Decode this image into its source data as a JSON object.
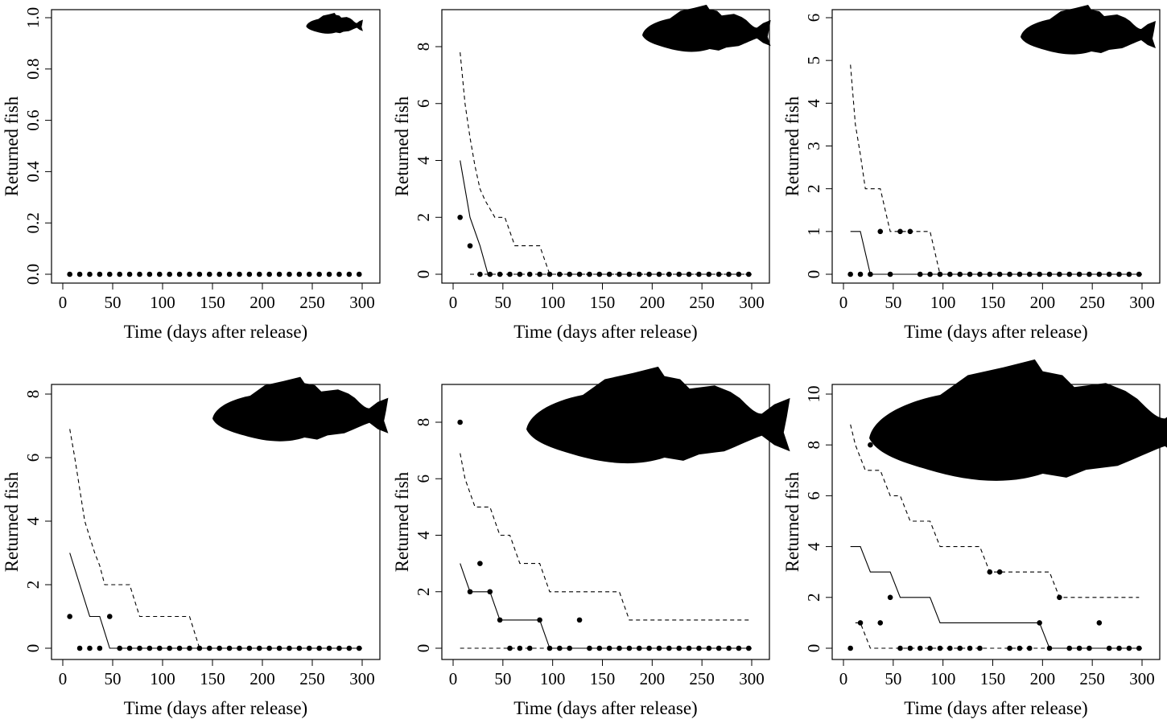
{
  "figure": {
    "xlabel": "Time (days after release)",
    "ylabel": "Returned fish"
  },
  "chart_data": [
    {
      "type": "scatter",
      "panel": "top-left",
      "xlabel": "Time (days after release)",
      "ylabel": "Returned fish",
      "xlim": [
        0,
        310
      ],
      "ylim": [
        0,
        1.0
      ],
      "xticks": [
        "0",
        "50",
        "100",
        "150",
        "200",
        "250",
        "300"
      ],
      "yticks": [
        "0.0",
        "0.2",
        "0.4",
        "0.6",
        "0.8",
        "1.0"
      ],
      "icon": "fish-silhouette-icon",
      "observed": {
        "x": [
          7,
          17,
          27,
          37,
          47,
          57,
          67,
          77,
          87,
          97,
          107,
          117,
          127,
          137,
          147,
          157,
          167,
          177,
          187,
          197,
          207,
          217,
          227,
          237,
          247,
          257,
          267,
          277,
          287,
          297
        ],
        "y": [
          0,
          0,
          0,
          0,
          0,
          0,
          0,
          0,
          0,
          0,
          0,
          0,
          0,
          0,
          0,
          0,
          0,
          0,
          0,
          0,
          0,
          0,
          0,
          0,
          0,
          0,
          0,
          0,
          0,
          0
        ]
      },
      "lower_band": {
        "x": [],
        "y": []
      },
      "upper_band": {
        "x": [],
        "y": []
      }
    },
    {
      "type": "scatter",
      "panel": "top-middle",
      "xlabel": "Time (days after release)",
      "ylabel": "Returned fish",
      "xlim": [
        0,
        310
      ],
      "ylim": [
        0,
        9
      ],
      "xticks": [
        "0",
        "50",
        "100",
        "150",
        "200",
        "250",
        "300"
      ],
      "yticks": [
        "0",
        "2",
        "4",
        "6",
        "8"
      ],
      "icon": "fish-silhouette-icon",
      "observed": {
        "x": [
          7,
          17,
          27,
          37,
          47,
          57,
          67,
          77,
          87,
          97,
          107,
          117,
          127,
          137,
          147,
          157,
          167,
          177,
          187,
          197,
          207,
          217,
          227,
          237,
          247,
          257,
          267,
          277,
          287,
          297
        ],
        "y": [
          2,
          1,
          0,
          0,
          0,
          0,
          0,
          0,
          0,
          0,
          0,
          0,
          0,
          0,
          0,
          0,
          0,
          0,
          0,
          0,
          0,
          0,
          0,
          0,
          0,
          0,
          0,
          0,
          0,
          0
        ]
      },
      "lower_band": {
        "x": [
          17,
          27
        ],
        "y": [
          0,
          0
        ]
      },
      "lower_band_label": "solid",
      "solid_line": {
        "x": [
          7,
          17,
          27,
          35
        ],
        "y": [
          4,
          2,
          1,
          0
        ]
      },
      "upper_band": {
        "x": [
          7,
          12,
          17,
          22,
          27,
          32,
          37,
          42,
          47,
          52,
          57,
          62,
          67,
          72,
          77,
          82,
          87,
          92,
          97,
          300
        ],
        "y": [
          7.8,
          6,
          4.8,
          3.8,
          3,
          2.6,
          2.3,
          2,
          2,
          2,
          1.5,
          1,
          1,
          1,
          1,
          1,
          1,
          0.5,
          0,
          0
        ]
      }
    },
    {
      "type": "scatter",
      "panel": "top-right",
      "xlabel": "Time (days after release)",
      "ylabel": "Returned fish",
      "xlim": [
        0,
        310
      ],
      "ylim": [
        0,
        6
      ],
      "xticks": [
        "0",
        "50",
        "100",
        "150",
        "200",
        "250",
        "300"
      ],
      "yticks": [
        "0",
        "1",
        "2",
        "3",
        "4",
        "5",
        "6"
      ],
      "icon": "fish-silhouette-icon",
      "observed": {
        "x": [
          7,
          17,
          27,
          37,
          47,
          57,
          67,
          77,
          87,
          97,
          107,
          117,
          127,
          137,
          147,
          157,
          167,
          177,
          187,
          197,
          207,
          217,
          227,
          237,
          247,
          257,
          267,
          277,
          287,
          297
        ],
        "y": [
          0,
          0,
          0,
          1,
          0,
          1,
          1,
          0,
          0,
          0,
          0,
          0,
          0,
          0,
          0,
          0,
          0,
          0,
          0,
          0,
          0,
          0,
          0,
          0,
          0,
          0,
          0,
          0,
          0,
          0
        ]
      },
      "solid_line": {
        "x": [
          7,
          17,
          22,
          27,
          300
        ],
        "y": [
          1,
          1,
          0.5,
          0,
          0
        ]
      },
      "upper_band": {
        "x": [
          7,
          12,
          17,
          22,
          27,
          37,
          42,
          47,
          57,
          67,
          77,
          87,
          97
        ],
        "y": [
          4.9,
          3.5,
          2.8,
          2,
          2,
          2,
          1.5,
          1,
          1,
          1,
          1,
          1,
          0
        ]
      }
    },
    {
      "type": "scatter",
      "panel": "bottom-left",
      "xlabel": "Time (days after release)",
      "ylabel": "Returned fish",
      "xlim": [
        0,
        310
      ],
      "ylim": [
        0,
        8
      ],
      "xticks": [
        "0",
        "50",
        "100",
        "150",
        "200",
        "250",
        "300"
      ],
      "yticks": [
        "0",
        "2",
        "4",
        "6",
        "8"
      ],
      "icon": "fish-silhouette-icon",
      "observed": {
        "x": [
          7,
          17,
          27,
          37,
          47,
          57,
          67,
          77,
          87,
          97,
          107,
          117,
          127,
          137,
          147,
          157,
          167,
          177,
          187,
          197,
          207,
          217,
          227,
          237,
          247,
          257,
          267,
          277,
          287,
          297
        ],
        "y": [
          1,
          0,
          0,
          0,
          1,
          0,
          0,
          0,
          0,
          0,
          0,
          0,
          0,
          0,
          0,
          0,
          0,
          0,
          0,
          0,
          0,
          0,
          0,
          0,
          0,
          0,
          0,
          0,
          0,
          0
        ]
      },
      "solid_line": {
        "x": [
          7,
          17,
          27,
          37,
          47,
          300
        ],
        "y": [
          3,
          2,
          1,
          1,
          0,
          0
        ]
      },
      "upper_band": {
        "x": [
          7,
          12,
          17,
          22,
          27,
          32,
          37,
          42,
          47,
          57,
          67,
          72,
          77,
          87,
          97,
          107,
          117,
          127,
          137
        ],
        "y": [
          6.9,
          6,
          5,
          4,
          3.5,
          3,
          2.6,
          2,
          2,
          2,
          2,
          1.5,
          1,
          1,
          1,
          1,
          1,
          1,
          0
        ]
      }
    },
    {
      "type": "scatter",
      "panel": "bottom-middle",
      "xlabel": "Time (days after release)",
      "ylabel": "Returned fish",
      "xlim": [
        0,
        310
      ],
      "ylim": [
        0,
        9
      ],
      "xticks": [
        "0",
        "50",
        "100",
        "150",
        "200",
        "250",
        "300"
      ],
      "yticks": [
        "0",
        "2",
        "4",
        "6",
        "8"
      ],
      "icon": "fish-silhouette-icon",
      "observed": {
        "x": [
          7,
          17,
          27,
          37,
          47,
          57,
          67,
          77,
          87,
          97,
          107,
          117,
          127,
          137,
          147,
          157,
          167,
          177,
          187,
          197,
          207,
          217,
          227,
          237,
          247,
          257,
          267,
          277,
          287,
          297
        ],
        "y": [
          8,
          2,
          3,
          2,
          1,
          0,
          0,
          0,
          1,
          0,
          0,
          0,
          1,
          0,
          0,
          0,
          0,
          0,
          0,
          0,
          0,
          0,
          0,
          0,
          0,
          0,
          0,
          0,
          0,
          0
        ]
      },
      "solid_line": {
        "x": [
          7,
          12,
          17,
          27,
          37,
          42,
          47,
          57,
          67,
          77,
          87,
          92,
          97,
          107,
          117,
          127,
          137,
          300
        ],
        "y": [
          3,
          2.5,
          2,
          2,
          2,
          1.5,
          1,
          1,
          1,
          1,
          1,
          0.5,
          0,
          0,
          0,
          0,
          0,
          0
        ]
      },
      "upper_band": {
        "x": [
          7,
          12,
          17,
          22,
          27,
          37,
          42,
          47,
          57,
          62,
          67,
          77,
          87,
          92,
          97,
          107,
          117,
          127,
          137,
          147,
          157,
          167,
          172,
          177,
          300
        ],
        "y": [
          6.9,
          6,
          5.5,
          5,
          5,
          5,
          4.5,
          4,
          4,
          3.5,
          3,
          3,
          3,
          2.5,
          2,
          2,
          2,
          2,
          2,
          2,
          2,
          2,
          1.5,
          1,
          1
        ]
      },
      "dashed_baseline": {
        "x": [
          7,
          300
        ],
        "y": [
          0,
          0
        ]
      }
    },
    {
      "type": "scatter",
      "panel": "bottom-right",
      "xlabel": "Time (days after release)",
      "ylabel": "Returned fish",
      "xlim": [
        0,
        310
      ],
      "ylim": [
        0,
        10
      ],
      "xticks": [
        "0",
        "50",
        "100",
        "150",
        "200",
        "250",
        "300"
      ],
      "yticks": [
        "0",
        "2",
        "4",
        "6",
        "8",
        "10"
      ],
      "icon": "fish-silhouette-icon",
      "observed": {
        "x": [
          7,
          17,
          27,
          37,
          47,
          57,
          67,
          77,
          87,
          97,
          107,
          117,
          127,
          137,
          147,
          157,
          167,
          177,
          187,
          197,
          207,
          217,
          227,
          237,
          247,
          257,
          267,
          277,
          287,
          297
        ],
        "y": [
          0,
          1,
          8,
          1,
          2,
          0,
          0,
          0,
          0,
          0,
          0,
          0,
          0,
          0,
          3,
          3,
          0,
          0,
          0,
          1,
          0,
          2,
          0,
          0,
          0,
          1,
          0,
          0,
          0,
          0
        ]
      },
      "solid_line": {
        "x": [
          7,
          17,
          27,
          37,
          47,
          57,
          67,
          77,
          87,
          97,
          107,
          117,
          127,
          137,
          147,
          157,
          167,
          177,
          187,
          197,
          207,
          300
        ],
        "y": [
          4,
          4,
          3,
          3,
          3,
          2,
          2,
          2,
          2,
          1,
          1,
          1,
          1,
          1,
          1,
          1,
          1,
          1,
          1,
          1,
          0,
          0
        ]
      },
      "upper_band": {
        "x": [
          7,
          12,
          17,
          22,
          27,
          37,
          42,
          47,
          57,
          67,
          77,
          87,
          92,
          97,
          107,
          117,
          127,
          137,
          147,
          157,
          167,
          177,
          187,
          197,
          207,
          217,
          227,
          237,
          247,
          257,
          267,
          277,
          287,
          297
        ],
        "y": [
          8.8,
          8,
          7.5,
          7,
          7,
          7,
          6.5,
          6,
          6,
          5,
          5,
          5,
          4.5,
          4,
          4,
          4,
          4,
          4,
          3,
          3,
          3,
          3,
          3,
          3,
          3,
          2,
          2,
          2,
          2,
          2,
          2,
          2,
          2,
          2
        ]
      },
      "dashed_baseline": {
        "x": [
          12,
          17,
          22,
          27,
          300
        ],
        "y": [
          1,
          1,
          0.5,
          0,
          0
        ]
      }
    }
  ]
}
